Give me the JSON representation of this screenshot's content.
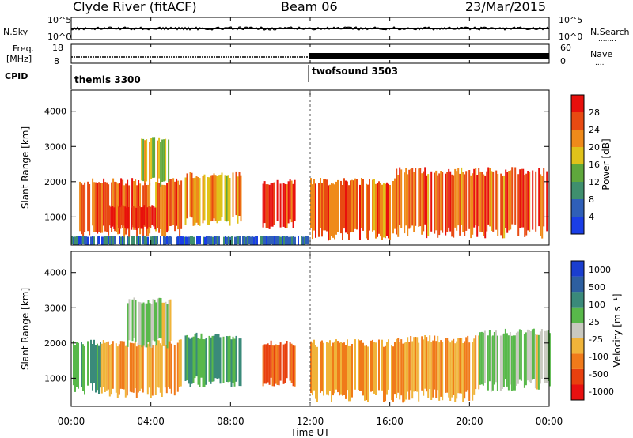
{
  "header": {
    "station": "Clyde River (fitACF)",
    "beam": "Beam 06",
    "date": "23/Mar/2015"
  },
  "status_panels": {
    "nsky_label": "N.Sky",
    "nsearch_label": "N.Search",
    "nsearch_dots": "........",
    "counts_ticks": [
      "10^5",
      "10^0"
    ],
    "freq_label": "Freq.",
    "freq_unit": "[MHz]",
    "freq_ticks": [
      "18",
      "8"
    ],
    "nave_label": "Nave",
    "nave_dots": "....",
    "nave_ticks": [
      "60",
      "0"
    ],
    "cpid_label": "CPID",
    "cpid_programs": [
      {
        "name": "themis 3300",
        "start_hour": 0
      },
      {
        "name": "twofsound 3503",
        "start_hour": 12
      }
    ]
  },
  "colorbars": {
    "power": {
      "label": "Power [dB]",
      "ticks": [
        "4",
        "8",
        "12",
        "16",
        "20",
        "24",
        "28"
      ],
      "colors": [
        "#1a3ee6",
        "#2f5fb8",
        "#3f8f6e",
        "#5fa83c",
        "#e0c21a",
        "#ef8a1a",
        "#e84a12",
        "#e8100c"
      ]
    },
    "velocity": {
      "label": "Velocity [m s⁻¹]",
      "ticks": [
        "1000",
        "500",
        "100",
        "25",
        "-25",
        "-100",
        "-500",
        "-1000"
      ],
      "colors": [
        "#1a3ecf",
        "#2d5fa0",
        "#3a8a7a",
        "#58b84a",
        "#c9c9c0",
        "#f0b43a",
        "#f07a1a",
        "#e8400e",
        "#e81010"
      ]
    }
  },
  "x_axis": {
    "title": "Time UT",
    "ticks": [
      "00:00",
      "04:00",
      "08:00",
      "12:00",
      "16:00",
      "20:00",
      "00:00"
    ]
  },
  "chart_data": [
    {
      "type": "heatmap",
      "panel": "power",
      "ylabel": "Slant Range [km]",
      "ylim": [
        200,
        4600
      ],
      "yticks": [
        1000,
        2000,
        3000,
        4000
      ],
      "xlim": [
        0,
        24
      ],
      "colorbar": "Power [dB]",
      "echo_regions": [
        {
          "t0": 0.4,
          "t1": 5.5,
          "r0": 600,
          "r1": 2000,
          "power_db": 24
        },
        {
          "t0": 1.8,
          "t1": 4.2,
          "r0": 700,
          "r1": 1300,
          "power_db": 28
        },
        {
          "t0": 3.5,
          "t1": 5.0,
          "r0": 2000,
          "r1": 3200,
          "power_db": 18
        },
        {
          "t0": 5.7,
          "t1": 8.5,
          "r0": 900,
          "r1": 2200,
          "power_db": 20
        },
        {
          "t0": 9.6,
          "t1": 11.2,
          "r0": 800,
          "r1": 2000,
          "power_db": 28
        },
        {
          "t0": 12.0,
          "t1": 16.3,
          "r0": 500,
          "r1": 2000,
          "power_db": 24
        },
        {
          "t0": 16.3,
          "t1": 24.0,
          "r0": 600,
          "r1": 2300,
          "power_db": 24
        },
        {
          "t0": 0.0,
          "t1": 12.0,
          "r0": 200,
          "r1": 450,
          "power_db": 6
        }
      ]
    },
    {
      "type": "heatmap",
      "panel": "velocity",
      "ylabel": "Slant Range [km]",
      "ylim": [
        200,
        4600
      ],
      "yticks": [
        1000,
        2000,
        3000,
        4000
      ],
      "xlim": [
        0,
        24
      ],
      "colorbar": "Velocity [m s⁻¹]",
      "echo_regions": [
        {
          "t0": 0.0,
          "t1": 1.5,
          "r0": 700,
          "r1": 2000,
          "velocity": 100
        },
        {
          "t0": 1.5,
          "t1": 5.5,
          "r0": 600,
          "r1": 2000,
          "velocity": -100
        },
        {
          "t0": 2.8,
          "t1": 5.0,
          "r0": 2000,
          "r1": 3200,
          "velocity": 25
        },
        {
          "t0": 5.7,
          "t1": 8.5,
          "r0": 900,
          "r1": 2200,
          "velocity": 100
        },
        {
          "t0": 9.6,
          "t1": 11.2,
          "r0": 900,
          "r1": 2000,
          "velocity": -500
        },
        {
          "t0": 12.0,
          "t1": 16.3,
          "r0": 500,
          "r1": 2000,
          "velocity": -100
        },
        {
          "t0": 16.3,
          "t1": 20.5,
          "r0": 500,
          "r1": 2100,
          "velocity": -100
        },
        {
          "t0": 20.5,
          "t1": 24.0,
          "r0": 800,
          "r1": 2300,
          "velocity": 25
        }
      ]
    }
  ]
}
